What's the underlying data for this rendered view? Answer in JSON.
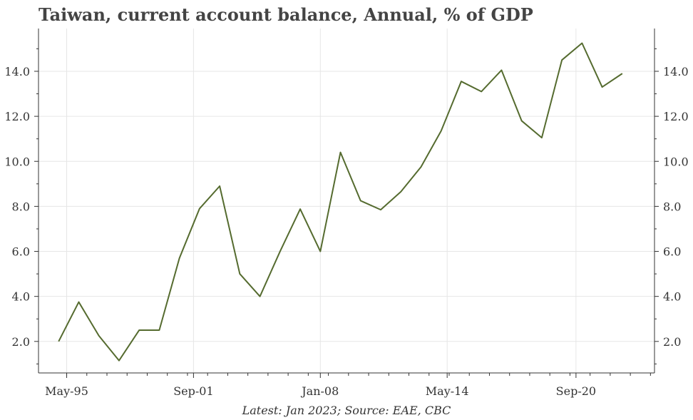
{
  "chart_data": {
    "type": "line",
    "title": "Taiwan, current account balance, Annual, % of GDP",
    "footer": "Latest: Jan 2023; Source: EAE, CBC",
    "xlabel": "",
    "ylabel": "",
    "x_ticks": [
      {
        "label": "May-95",
        "year": 1995.4
      },
      {
        "label": "Sep-01",
        "year": 2001.7
      },
      {
        "label": "Jan-08",
        "year": 2008.0
      },
      {
        "label": "May-14",
        "year": 2014.3
      },
      {
        "label": "Sep-20",
        "year": 2020.7
      }
    ],
    "y_ticks": [
      "2.0",
      "4.0",
      "6.0",
      "8.0",
      "10.0",
      "12.0",
      "14.0"
    ],
    "xlim": [
      1994.0,
      2024.6
    ],
    "ylim": [
      0.6,
      15.9
    ],
    "grid": true,
    "line_color": "#556b2f",
    "x": [
      1995,
      1996,
      1997,
      1998,
      1999,
      2000,
      2001,
      2002,
      2003,
      2004,
      2005,
      2006,
      2007,
      2008,
      2009,
      2010,
      2011,
      2012,
      2013,
      2014,
      2015,
      2016,
      2017,
      2018,
      2019,
      2020,
      2021,
      2022,
      2023
    ],
    "values": [
      2.0,
      3.75,
      2.25,
      1.15,
      2.5,
      2.5,
      5.7,
      7.9,
      8.9,
      5.0,
      4.0,
      6.0,
      7.88,
      6.0,
      10.4,
      8.25,
      7.85,
      8.65,
      9.75,
      11.35,
      13.55,
      13.1,
      14.05,
      11.8,
      11.05,
      14.5,
      15.25,
      13.3,
      13.9
    ]
  }
}
